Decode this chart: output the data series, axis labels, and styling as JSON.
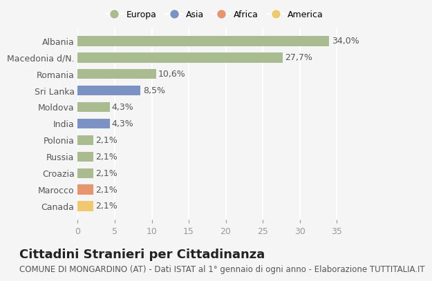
{
  "categories": [
    "Albania",
    "Macedonia d/N.",
    "Romania",
    "Sri Lanka",
    "Moldova",
    "India",
    "Polonia",
    "Russia",
    "Croazia",
    "Marocco",
    "Canada"
  ],
  "values": [
    34.0,
    27.7,
    10.6,
    8.5,
    4.3,
    4.3,
    2.1,
    2.1,
    2.1,
    2.1,
    2.1
  ],
  "labels": [
    "34,0%",
    "27,7%",
    "10,6%",
    "8,5%",
    "4,3%",
    "4,3%",
    "2,1%",
    "2,1%",
    "2,1%",
    "2,1%",
    "2,1%"
  ],
  "colors": [
    "#a8bc8f",
    "#a8bc8f",
    "#a8bc8f",
    "#7b93c4",
    "#a8bc8f",
    "#7b93c4",
    "#a8bc8f",
    "#a8bc8f",
    "#a8bc8f",
    "#e8956d",
    "#f0c96e"
  ],
  "continent_colors": {
    "Europa": "#a8bc8f",
    "Asia": "#7b93c4",
    "Africa": "#e8956d",
    "America": "#f0c96e"
  },
  "legend_labels": [
    "Europa",
    "Asia",
    "Africa",
    "America"
  ],
  "xlim": [
    0,
    37
  ],
  "xticks": [
    0,
    5,
    10,
    15,
    20,
    25,
    30,
    35
  ],
  "title": "Cittadini Stranieri per Cittadinanza",
  "subtitle": "COMUNE DI MONGARDINO (AT) - Dati ISTAT al 1° gennaio di ogni anno - Elaborazione TUTTITALIA.IT",
  "background_color": "#f5f5f5",
  "grid_color": "#ffffff",
  "title_fontsize": 13,
  "subtitle_fontsize": 8.5,
  "label_fontsize": 9,
  "tick_fontsize": 9
}
